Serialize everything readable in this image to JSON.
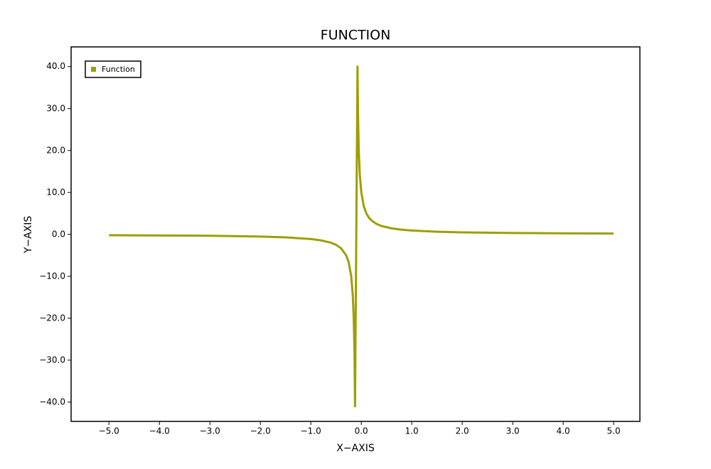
{
  "chart_data": {
    "type": "line",
    "title": "FUNCTION",
    "x_label": "X−AXIS",
    "y_label": "Y−AXIS",
    "x": [
      -5,
      -4,
      -3,
      -2,
      -1.5,
      -1,
      -0.8,
      -0.6,
      -0.5,
      -0.4,
      -0.3,
      -0.25,
      -0.2,
      -0.17,
      -0.15,
      -0.135,
      -0.124,
      -0.075,
      -0.065,
      -0.05,
      -0.03,
      0,
      0.05,
      0.1,
      0.15,
      0.2,
      0.3,
      0.4,
      0.6,
      0.8,
      1,
      1.5,
      2,
      3,
      4,
      5
    ],
    "series": [
      {
        "name": "Function",
        "color": "#9e9e00",
        "values": [
          -0.2,
          -0.26,
          -0.34,
          -0.53,
          -0.71,
          -1.11,
          -1.43,
          -2.0,
          -2.5,
          -3.33,
          -5.0,
          -6.67,
          -10.0,
          -14.29,
          -20.0,
          -28.57,
          -41.0,
          40.0,
          28.57,
          20.0,
          14.29,
          10.0,
          6.67,
          5.0,
          4.0,
          3.33,
          2.5,
          2.0,
          1.43,
          1.11,
          0.91,
          0.63,
          0.48,
          0.32,
          0.24,
          0.2
        ]
      }
    ],
    "xlim": [
      -5.75,
      5.52
    ],
    "ylim": [
      -44.6,
      44.7
    ],
    "xticks": [
      {
        "value": -5,
        "label": "−5.0"
      },
      {
        "value": -4,
        "label": "−4.0"
      },
      {
        "value": -3,
        "label": "−3.0"
      },
      {
        "value": -2,
        "label": "−2.0"
      },
      {
        "value": -1,
        "label": "−1.0"
      },
      {
        "value": 0,
        "label": "0.0"
      },
      {
        "value": 1,
        "label": "1.0"
      },
      {
        "value": 2,
        "label": "2.0"
      },
      {
        "value": 3,
        "label": "3.0"
      },
      {
        "value": 4,
        "label": "4.0"
      },
      {
        "value": 5,
        "label": "5.0"
      }
    ],
    "yticks": [
      {
        "value": -40,
        "label": "−40.0"
      },
      {
        "value": -30,
        "label": "−30.0"
      },
      {
        "value": -20,
        "label": "−20.0"
      },
      {
        "value": -10,
        "label": "−10.0"
      },
      {
        "value": 0,
        "label": "0.0"
      },
      {
        "value": 10,
        "label": "10.0"
      },
      {
        "value": 20,
        "label": "20.0"
      },
      {
        "value": 30,
        "label": "30.0"
      },
      {
        "value": 40,
        "label": "40.0"
      }
    ],
    "legend": "upper left",
    "grid": false
  }
}
